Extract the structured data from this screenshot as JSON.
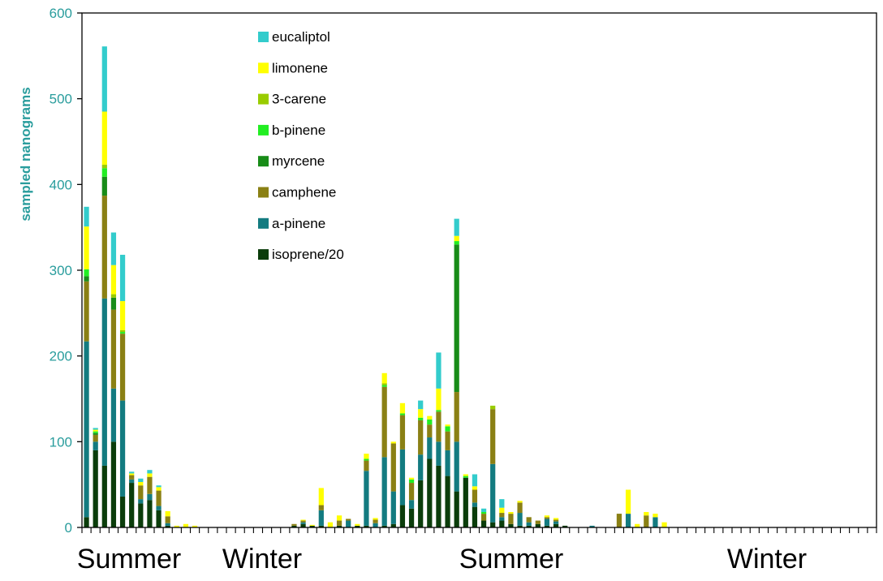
{
  "chart_data": {
    "type": "bar",
    "stacked": true,
    "title": "",
    "xlabel": "",
    "ylabel": "sampled nanograms",
    "ylim": [
      0,
      600
    ],
    "yticks": [
      0,
      100,
      200,
      300,
      400,
      500,
      600
    ],
    "grid": false,
    "legend_position": "top-center",
    "season_labels": [
      "Summer",
      "Winter",
      "Summer",
      "Winter"
    ],
    "colors": {
      "axis_text": "#2a9d9d",
      "axis_line": "#000000"
    },
    "series": [
      {
        "name": "isoprene/20",
        "color": "#0b3d0b",
        "values": [
          12,
          90,
          72,
          100,
          36,
          52,
          28,
          32,
          20,
          2,
          0,
          0,
          0,
          0,
          0,
          0,
          0,
          0,
          0,
          0,
          0,
          0,
          0,
          2,
          4,
          2,
          2,
          0,
          2,
          0,
          2,
          2,
          0,
          2,
          4,
          26,
          22,
          55,
          80,
          72,
          60,
          42,
          58,
          24,
          8,
          6,
          8,
          4,
          2,
          2,
          4,
          2,
          4,
          2,
          0,
          0,
          0,
          0,
          0,
          0,
          0,
          0,
          0,
          0,
          0,
          0,
          0,
          0,
          0,
          0,
          0,
          0,
          0,
          0,
          0,
          0,
          0,
          0,
          0,
          0,
          0,
          0,
          0,
          0,
          0,
          0,
          0,
          0
        ]
      },
      {
        "name": "a-pinene",
        "color": "#137b80",
        "values": [
          205,
          10,
          195,
          62,
          112,
          4,
          5,
          7,
          5,
          3,
          0,
          0,
          0,
          0,
          0,
          0,
          0,
          0,
          0,
          0,
          0,
          0,
          0,
          0,
          2,
          0,
          18,
          0,
          0,
          8,
          0,
          64,
          5,
          80,
          38,
          65,
          10,
          30,
          25,
          28,
          30,
          58,
          0,
          5,
          0,
          68,
          4,
          0,
          15,
          4,
          0,
          8,
          3,
          0,
          0,
          0,
          2,
          0,
          0,
          0,
          16,
          0,
          0,
          12,
          0,
          0,
          0,
          0,
          0,
          0,
          0,
          0,
          0,
          0,
          0,
          0,
          0,
          0,
          0,
          0,
          0,
          0,
          0,
          0,
          0,
          0,
          0,
          0
        ]
      },
      {
        "name": "camphene",
        "color": "#8a8014",
        "values": [
          70,
          8,
          120,
          92,
          78,
          5,
          16,
          20,
          18,
          8,
          0,
          0,
          0,
          0,
          0,
          0,
          0,
          0,
          0,
          0,
          0,
          0,
          0,
          2,
          2,
          0,
          6,
          0,
          6,
          2,
          0,
          12,
          4,
          82,
          56,
          40,
          20,
          40,
          15,
          35,
          22,
          58,
          0,
          15,
          8,
          64,
          5,
          12,
          12,
          6,
          4,
          2,
          2,
          0,
          0,
          0,
          0,
          0,
          0,
          16,
          0,
          0,
          14,
          0,
          0,
          0,
          0,
          0,
          0,
          0,
          0,
          0,
          0,
          0,
          0,
          0,
          0,
          0,
          0,
          0,
          0,
          0,
          0,
          0,
          0,
          0,
          0,
          0
        ]
      },
      {
        "name": "myrcene",
        "color": "#188c18",
        "values": [
          6,
          2,
          22,
          14,
          0,
          0,
          0,
          0,
          0,
          0,
          0,
          0,
          0,
          0,
          0,
          0,
          0,
          0,
          0,
          0,
          0,
          0,
          0,
          0,
          0,
          0,
          0,
          0,
          0,
          0,
          0,
          0,
          0,
          0,
          0,
          0,
          0,
          0,
          0,
          0,
          0,
          172,
          0,
          0,
          0,
          0,
          0,
          0,
          0,
          0,
          0,
          0,
          0,
          0,
          0,
          0,
          0,
          0,
          0,
          0,
          0,
          0,
          0,
          0,
          0,
          0,
          0,
          0,
          0,
          0,
          0,
          0,
          0,
          0,
          0,
          0,
          0,
          0,
          0,
          0,
          0,
          0,
          0,
          0,
          0,
          0,
          0,
          0
        ]
      },
      {
        "name": "b-pinene",
        "color": "#22ee22",
        "values": [
          8,
          2,
          10,
          0,
          2,
          0,
          0,
          0,
          0,
          0,
          0,
          0,
          0,
          0,
          0,
          0,
          0,
          0,
          0,
          0,
          0,
          0,
          0,
          0,
          0,
          0,
          0,
          0,
          0,
          0,
          0,
          2,
          0,
          2,
          0,
          2,
          4,
          3,
          6,
          2,
          6,
          4,
          2,
          0,
          2,
          0,
          0,
          0,
          0,
          0,
          0,
          0,
          0,
          0,
          0,
          0,
          0,
          0,
          0,
          0,
          0,
          0,
          0,
          0,
          0,
          0,
          0,
          0,
          0,
          0,
          0,
          0,
          0,
          0,
          0,
          0,
          0,
          0,
          0,
          0,
          0,
          0,
          0,
          0,
          0,
          0,
          0,
          0
        ]
      },
      {
        "name": "3-carene",
        "color": "#99cc00",
        "values": [
          0,
          0,
          4,
          4,
          2,
          0,
          0,
          0,
          0,
          0,
          0,
          0,
          0,
          0,
          0,
          0,
          0,
          0,
          0,
          0,
          0,
          0,
          0,
          0,
          0,
          0,
          0,
          0,
          0,
          0,
          0,
          0,
          0,
          2,
          0,
          0,
          0,
          0,
          0,
          0,
          0,
          0,
          0,
          0,
          0,
          4,
          0,
          0,
          0,
          0,
          0,
          0,
          0,
          0,
          0,
          0,
          0,
          0,
          0,
          0,
          0,
          0,
          0,
          0,
          0,
          0,
          0,
          0,
          0,
          0,
          0,
          0,
          0,
          0,
          0,
          0,
          0,
          0,
          0,
          0,
          0,
          0,
          0,
          0,
          0,
          0,
          0,
          0
        ]
      },
      {
        "name": "limonene",
        "color": "#ffff00",
        "values": [
          50,
          2,
          62,
          34,
          34,
          2,
          4,
          4,
          4,
          6,
          2,
          4,
          2,
          0,
          0,
          0,
          0,
          0,
          0,
          0,
          0,
          0,
          0,
          0,
          1,
          1,
          20,
          6,
          6,
          0,
          2,
          6,
          2,
          12,
          2,
          12,
          2,
          10,
          4,
          25,
          2,
          6,
          2,
          4,
          0,
          0,
          6,
          2,
          2,
          0,
          0,
          2,
          2,
          0,
          0,
          0,
          0,
          0,
          0,
          0,
          28,
          4,
          4,
          4,
          6,
          0,
          0,
          0,
          0,
          0,
          0,
          0,
          0,
          0,
          0,
          0,
          0,
          0,
          0,
          0,
          0,
          0,
          0,
          0,
          0,
          0,
          0,
          0
        ]
      },
      {
        "name": "eucaliptol",
        "color": "#33cccc",
        "values": [
          23,
          2,
          76,
          38,
          54,
          2,
          4,
          4,
          2,
          0,
          0,
          0,
          0,
          0,
          0,
          0,
          0,
          0,
          0,
          0,
          0,
          0,
          0,
          0,
          0,
          0,
          0,
          0,
          0,
          0,
          0,
          0,
          0,
          0,
          0,
          0,
          0,
          10,
          0,
          42,
          0,
          20,
          0,
          14,
          4,
          0,
          10,
          0,
          0,
          0,
          0,
          0,
          0,
          0,
          0,
          0,
          0,
          0,
          0,
          0,
          0,
          0,
          0,
          0,
          0,
          0,
          0,
          0,
          0,
          0,
          0,
          0,
          0,
          0,
          0,
          0,
          0,
          0,
          0,
          0,
          0,
          0,
          0,
          0,
          0,
          0,
          0,
          0
        ]
      }
    ]
  }
}
